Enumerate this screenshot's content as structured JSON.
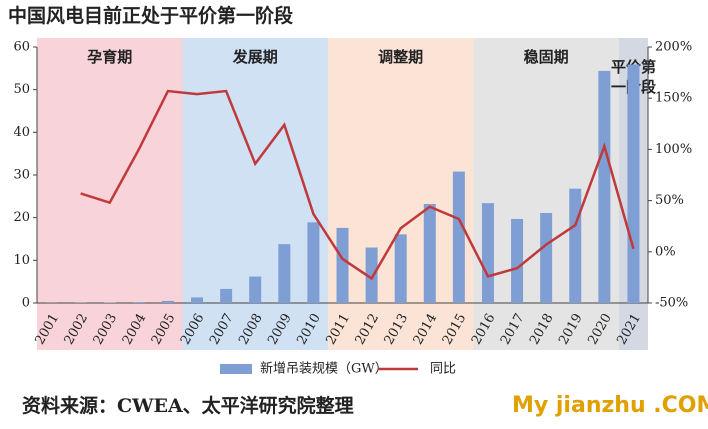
{
  "chart_data": {
    "type": "bar-line",
    "title": "中国风电目前正处于平价第一阶段",
    "source": "资料来源：CWEA、太平洋研究院整理",
    "watermark": "My jianzhu .COM",
    "categories": [
      "2001",
      "2002",
      "2003",
      "2004",
      "2005",
      "2006",
      "2007",
      "2008",
      "2009",
      "2010",
      "2011",
      "2012",
      "2013",
      "2014",
      "2015",
      "2016",
      "2017",
      "2018",
      "2019",
      "2020",
      "2021"
    ],
    "phases": [
      {
        "name": "孕育期",
        "color": "#f8d3d9"
      },
      {
        "name": "发展期",
        "color": "#cfe1f3"
      },
      {
        "name": "调整期",
        "color": "#fbe3d6"
      },
      {
        "name": "稳固期",
        "color": "#e4e4e4"
      },
      {
        "name": "平价第一阶段",
        "color": "#d3d8e2"
      }
    ],
    "series": [
      {
        "name": "新增吊装规模（GW）",
        "type": "bar",
        "color": "#7f9fd4",
        "values": [
          0.04,
          0.07,
          0.1,
          0.2,
          0.5,
          1.3,
          3.3,
          6.2,
          13.8,
          18.9,
          17.6,
          13.0,
          16.1,
          23.2,
          30.8,
          23.4,
          19.7,
          21.1,
          26.8,
          54.4,
          55.9
        ]
      },
      {
        "name": "同比",
        "type": "line",
        "axis": "y2",
        "color": "#c0393b",
        "values": [
          null,
          57,
          48,
          100,
          157,
          154,
          157,
          86,
          124,
          37,
          -7,
          -26,
          23,
          44,
          32,
          -24,
          -16,
          7,
          26,
          103,
          3
        ]
      }
    ],
    "ylim": [
      0,
      60
    ],
    "yticks": [
      0,
      10,
      20,
      30,
      40,
      50,
      60
    ],
    "y2lim": [
      -50,
      200
    ],
    "y2ticks": [
      {
        "value": -50,
        "label": "-50%"
      },
      {
        "value": 0,
        "label": "0%"
      },
      {
        "value": 50,
        "label": "50%"
      },
      {
        "value": 100,
        "label": "100%"
      },
      {
        "value": 150,
        "label": "150%"
      },
      {
        "value": 200,
        "label": "200%"
      }
    ]
  }
}
